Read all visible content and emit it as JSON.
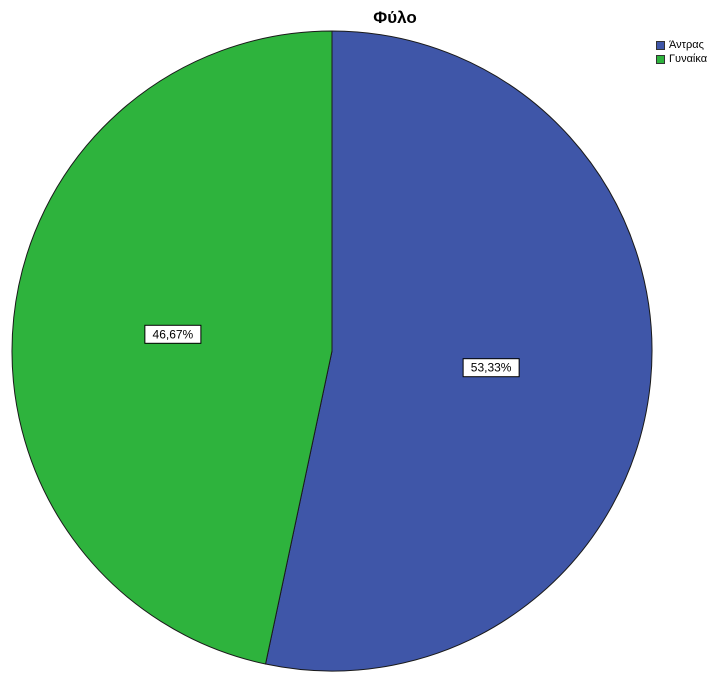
{
  "chart_data": {
    "type": "pie",
    "title": "Φύλο",
    "categories": [
      "Άντρας",
      "Γυναίκα"
    ],
    "values": [
      53.33,
      46.67
    ],
    "labels": [
      "53,33%",
      "46,67%"
    ],
    "colors": [
      "#3f56a8",
      "#2eb33d"
    ],
    "legend_placement": "top-right"
  }
}
